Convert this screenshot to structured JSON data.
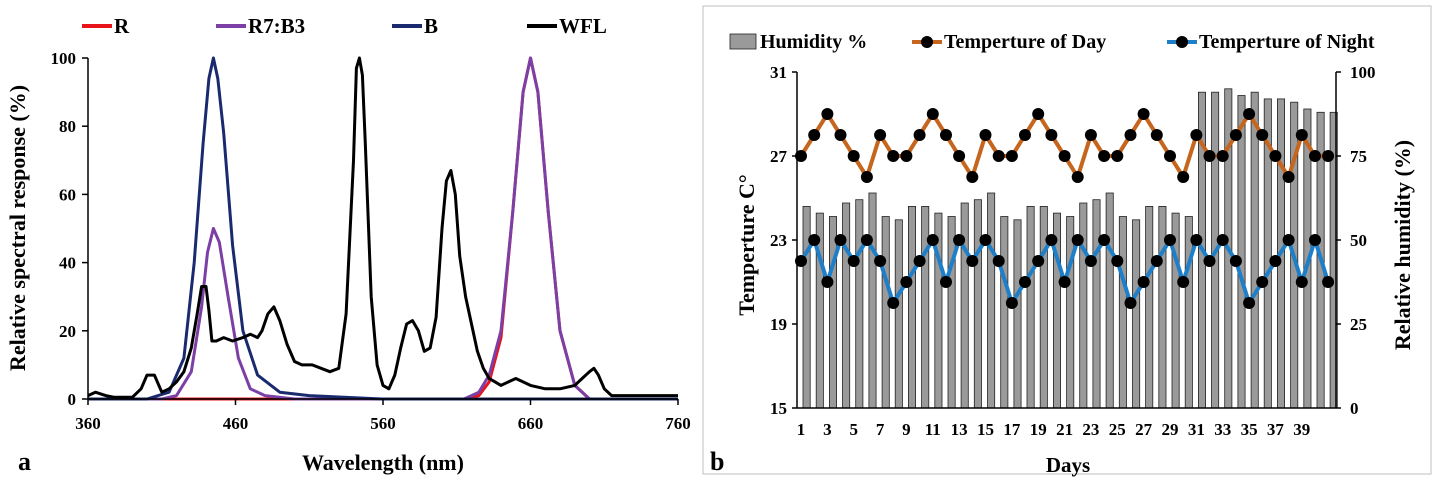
{
  "panel_a": {
    "letter": "a",
    "legend": [
      {
        "label": "R",
        "color": "#e8141c"
      },
      {
        "label": "R7:B3",
        "color": "#7b3fa6"
      },
      {
        "label": "B",
        "color": "#1a2a6e"
      },
      {
        "label": "WFL",
        "color": "#000000"
      }
    ]
  },
  "panel_b": {
    "letter": "b",
    "legend": [
      {
        "label": "Humidity %",
        "color": "#8c8c8c"
      },
      {
        "label": "Temperture of Day",
        "color": "#c5651e"
      },
      {
        "label": "Temperture of Night",
        "color": "#1e7fc8"
      }
    ]
  },
  "chart_data": [
    {
      "type": "line",
      "xlabel": "Wavelength (nm)",
      "ylabel": "Relative spectral response (%)",
      "xlim": [
        360,
        760
      ],
      "ylim": [
        0,
        100
      ],
      "xticks": [
        360,
        460,
        560,
        660,
        760
      ],
      "yticks": [
        0,
        20,
        40,
        60,
        80,
        100
      ],
      "grid": false,
      "legend_position": "top",
      "series": [
        {
          "name": "R",
          "color": "#e8141c",
          "x": [
            360,
            615,
            625,
            632,
            640,
            648,
            655,
            660,
            665,
            672,
            680,
            690,
            700,
            760
          ],
          "y": [
            0,
            0,
            1,
            5,
            18,
            55,
            90,
            100,
            90,
            55,
            20,
            4,
            0,
            0
          ]
        },
        {
          "name": "R7:B3",
          "color": "#7b3fa6",
          "x": [
            360,
            410,
            420,
            430,
            437,
            441,
            445,
            449,
            455,
            462,
            470,
            480,
            500,
            600,
            615,
            625,
            632,
            640,
            648,
            655,
            660,
            665,
            672,
            680,
            690,
            700,
            760
          ],
          "y": [
            0,
            0,
            1,
            8,
            27,
            43,
            50,
            46,
            30,
            12,
            3,
            1,
            0,
            0,
            0,
            2,
            7,
            20,
            55,
            90,
            100,
            90,
            55,
            20,
            4,
            0,
            0
          ]
        },
        {
          "name": "B",
          "color": "#1a2a6e",
          "x": [
            360,
            400,
            415,
            425,
            432,
            438,
            442,
            445,
            448,
            452,
            458,
            465,
            475,
            490,
            510,
            560,
            760
          ],
          "y": [
            0,
            0,
            2,
            12,
            40,
            75,
            94,
            100,
            94,
            78,
            45,
            20,
            7,
            2,
            1,
            0,
            0
          ]
        },
        {
          "name": "WFL",
          "color": "#000000",
          "x": [
            360,
            365,
            372,
            378,
            385,
            390,
            396,
            400,
            405,
            410,
            415,
            420,
            425,
            430,
            434,
            437,
            440,
            442,
            444,
            447,
            452,
            458,
            465,
            470,
            475,
            478,
            482,
            486,
            490,
            495,
            500,
            505,
            512,
            518,
            524,
            530,
            535,
            540,
            542,
            544,
            546,
            548,
            552,
            556,
            560,
            564,
            568,
            572,
            576,
            580,
            584,
            588,
            592,
            596,
            600,
            603,
            606,
            609,
            612,
            616,
            620,
            624,
            628,
            632,
            636,
            640,
            645,
            650,
            655,
            660,
            670,
            680,
            690,
            695,
            700,
            703,
            706,
            710,
            715,
            720,
            730,
            740,
            760
          ],
          "y": [
            1,
            2,
            1,
            0.5,
            0.5,
            0.5,
            3,
            7,
            7,
            2,
            3,
            5,
            8,
            15,
            25,
            33,
            33,
            26,
            17,
            17,
            18,
            17,
            18,
            19,
            18,
            20,
            25,
            27,
            23,
            16,
            11,
            10,
            10,
            9,
            8,
            9,
            25,
            70,
            97,
            100,
            95,
            75,
            30,
            10,
            4,
            3,
            7,
            15,
            22,
            23,
            20,
            14,
            15,
            24,
            50,
            64,
            67,
            60,
            42,
            30,
            22,
            14,
            9,
            6,
            5,
            4,
            5,
            6,
            5,
            4,
            3,
            3,
            4,
            6,
            8,
            9,
            7,
            3,
            1,
            1,
            1,
            1,
            1
          ]
        }
      ]
    },
    {
      "type": "bar+line",
      "xlabel": "Days",
      "ylabel": "Temperture C°",
      "y2label": "Relative humidity (%)",
      "ylim": [
        15,
        31
      ],
      "yticks": [
        15,
        19,
        23,
        27,
        31
      ],
      "y2lim": [
        0,
        100
      ],
      "y2ticks": [
        0,
        25,
        50,
        75,
        100
      ],
      "xticks": [
        1,
        3,
        5,
        7,
        9,
        11,
        13,
        15,
        17,
        19,
        21,
        23,
        25,
        27,
        29,
        31,
        33,
        35,
        37,
        39
      ],
      "days": [
        1,
        2,
        3,
        4,
        5,
        6,
        7,
        8,
        9,
        10,
        11,
        12,
        13,
        14,
        15,
        16,
        17,
        18,
        19,
        20,
        21,
        22,
        23,
        24,
        25,
        26,
        27,
        28,
        29,
        30,
        31,
        32,
        33,
        34,
        35,
        36,
        37,
        38,
        39,
        40,
        41
      ],
      "grid": false,
      "legend_position": "top",
      "series": [
        {
          "name": "Humidity %",
          "kind": "bar",
          "axis": "right",
          "color": "#8c8c8c",
          "values": [
            60,
            58,
            57,
            61,
            62,
            64,
            57,
            56,
            60,
            60,
            58,
            57,
            61,
            62,
            64,
            57,
            56,
            60,
            60,
            58,
            57,
            61,
            62,
            64,
            57,
            56,
            60,
            60,
            58,
            57,
            94,
            94,
            95,
            93,
            94,
            92,
            92,
            91,
            89,
            88,
            88
          ]
        },
        {
          "name": "Temperture of Day",
          "kind": "line",
          "axis": "left",
          "color": "#c5651e",
          "values": [
            27,
            28,
            29,
            28,
            27,
            26,
            28,
            27,
            27,
            28,
            29,
            28,
            27,
            26,
            28,
            27,
            27,
            28,
            29,
            28,
            27,
            26,
            28,
            27,
            27,
            28,
            29,
            28,
            27,
            26,
            28,
            27,
            27,
            28,
            29,
            28,
            27,
            26,
            28,
            27,
            27
          ]
        },
        {
          "name": "Temperture of Night",
          "kind": "line",
          "axis": "left",
          "color": "#1e7fc8",
          "values": [
            22,
            23,
            21,
            23,
            22,
            23,
            22,
            20,
            21,
            22,
            23,
            21,
            23,
            22,
            23,
            22,
            20,
            21,
            22,
            23,
            21,
            23,
            22,
            23,
            22,
            20,
            21,
            22,
            23,
            21,
            23,
            22,
            23,
            22,
            20,
            21,
            22,
            23,
            21,
            23,
            21
          ]
        }
      ]
    }
  ]
}
